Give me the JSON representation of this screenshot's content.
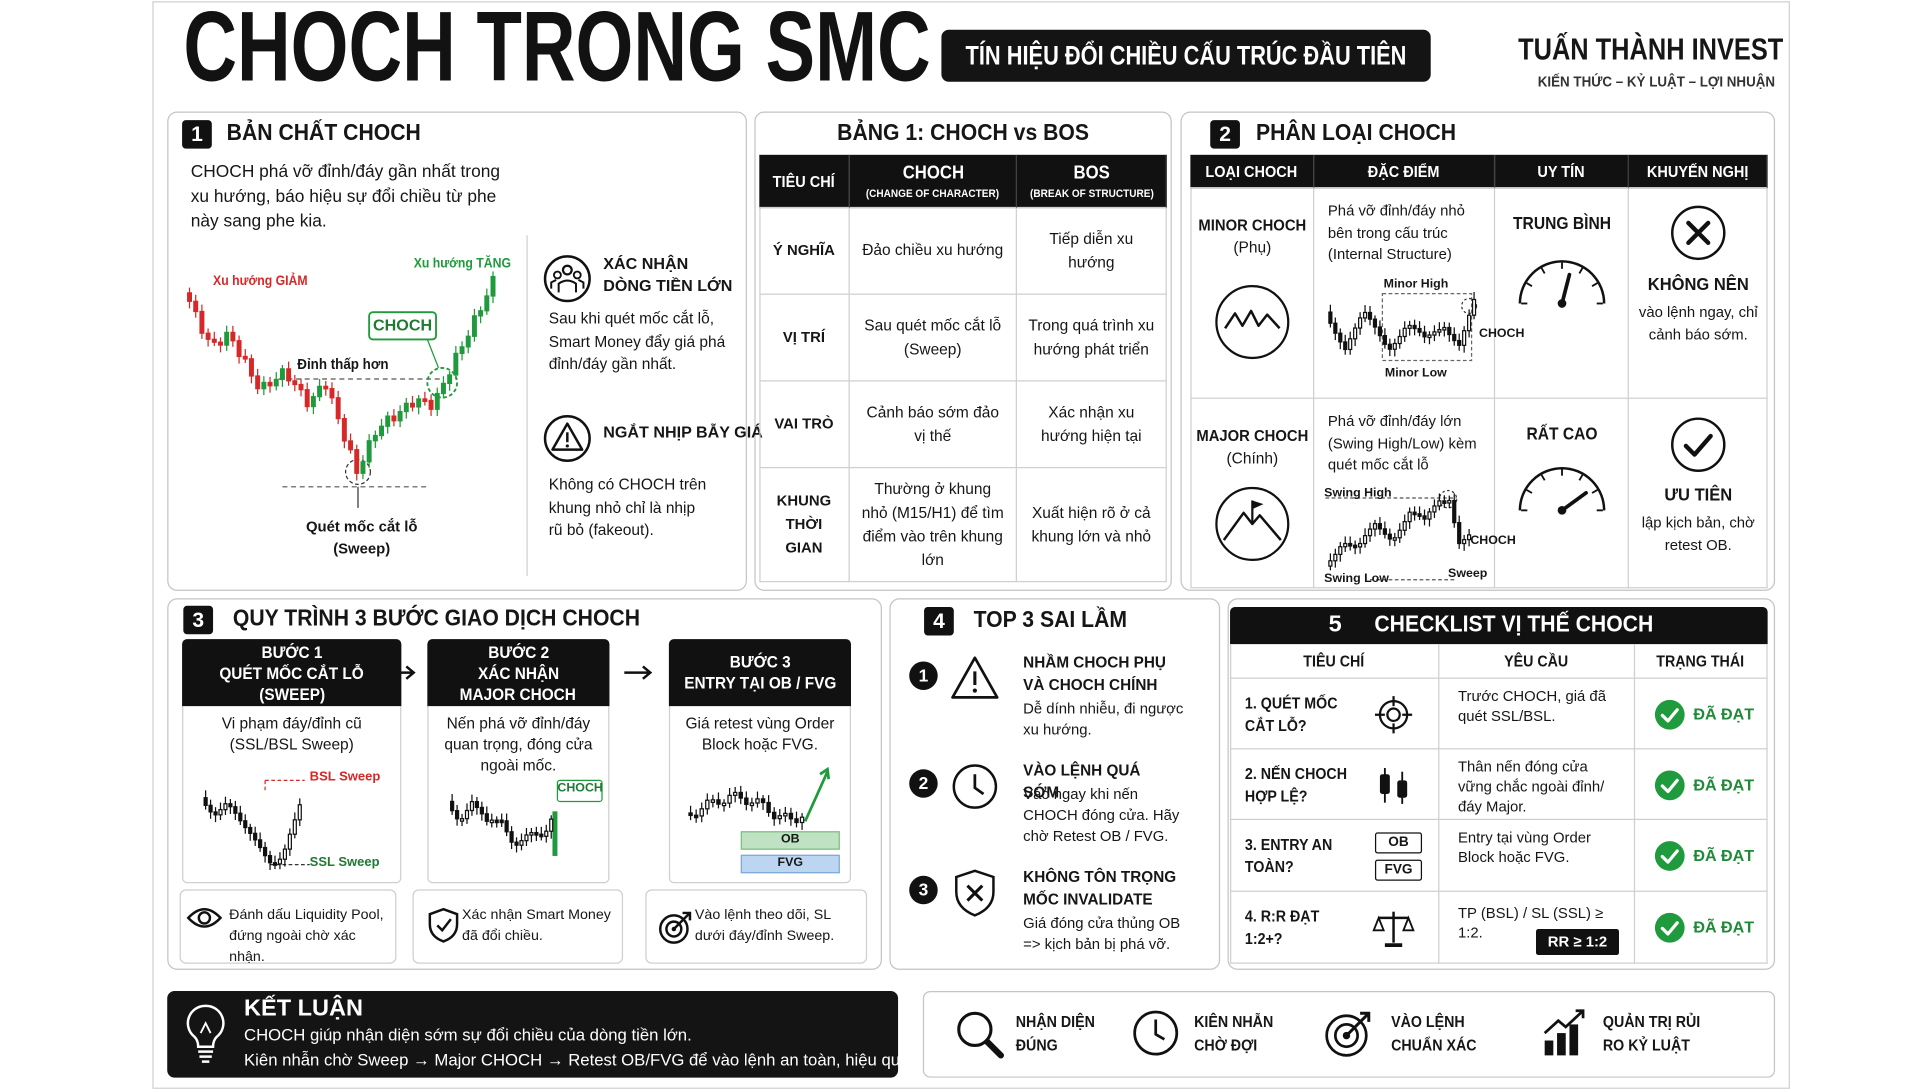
{
  "header": {
    "title": "CHOCH TRONG SMC",
    "subtitle": "TÍN HIỆU ĐỔI CHIỀU CẤU TRÚC ĐẦU TIÊN",
    "brand": "TUẤN THÀNH INVEST",
    "tagline": "KIẾN THỨC – KỶ LUẬT – LỢI NHUẬN"
  },
  "section1": {
    "number": "1",
    "title": "BẢN CHẤT CHOCH",
    "description": "CHOCH phá vỡ đỉnh/đáy gần nhất trong xu hướng, báo hiệu sự đổi chiều từ phe này sang phe kia.",
    "chart_labels": {
      "down": "Xu hướng GIẢM",
      "up": "Xu hướng TĂNG",
      "choch": "CHOCH",
      "lower_high": "Đỉnh thấp hơn",
      "sweep": "Quét mốc cắt lỗ (Sweep)"
    },
    "points": [
      {
        "title": "XÁC NHẬN DÒNG TIỀN LỚN",
        "text": "Sau khi quét mốc cắt lỗ, Smart Money đẩy giá phá đỉnh/đáy gần nhất."
      },
      {
        "title": "NGẮT NHỊP BẪY GIÁ",
        "text": "Không có CHOCH trên khung nhỏ chỉ là nhịp rũ bỏ (fakeout)."
      }
    ]
  },
  "table1": {
    "title": "BẢNG 1: CHOCH vs BOS",
    "headers": [
      {
        "label": "TIÊU CHÍ"
      },
      {
        "label": "CHOCH",
        "sub": "(CHANGE OF CHARACTER)"
      },
      {
        "label": "BOS",
        "sub": "(BREAK OF STRUCTURE)"
      }
    ],
    "rows": [
      [
        "Ý NGHĨA",
        "Đảo chiều xu hướng",
        "Tiếp diễn xu hướng"
      ],
      [
        "VỊ TRÍ",
        "Sau quét mốc cắt lỗ (Sweep)",
        "Trong quá trình xu hướng phát triển"
      ],
      [
        "VAI TRÒ",
        "Cảnh báo sớm đảo vị thế",
        "Xác nhận xu hướng hiện tại"
      ],
      [
        "KHUNG THỜI GIAN",
        "Thường ở khung nhỏ (M15/H1) để tìm điểm vào trên khung lớn",
        "Xuất hiện rõ ở cả khung lớn và nhỏ"
      ]
    ]
  },
  "section2": {
    "number": "2",
    "title": "PHÂN LOẠI CHOCH",
    "headers": [
      "LOẠI CHOCH",
      "ĐẶC ĐIỂM",
      "UY TÍN",
      "KHUYẾN NGHỊ"
    ],
    "rows": [
      {
        "type": "MINOR CHOCH",
        "type_sub": "(Phụ)",
        "feature": "Phá vỡ đỉnh/đáy nhỏ bên trong cấu trúc (Internal Structure)",
        "chart_labels": [
          "Minor High",
          "Minor Low",
          "CHOCH"
        ],
        "reputation": "TRUNG BÌNH",
        "advice_title": "KHÔNG NÊN",
        "advice": "vào lệnh ngay, chỉ cảnh báo sớm."
      },
      {
        "type": "MAJOR CHOCH",
        "type_sub": "(Chính)",
        "feature": "Phá vỡ đỉnh/đáy lớn (Swing High/Low) kèm quét mốc cắt lỗ",
        "chart_labels": [
          "Swing High",
          "Swing Low",
          "Sweep",
          "CHOCH"
        ],
        "reputation": "RẤT CAO",
        "advice_title": "ƯU TIÊN",
        "advice": "lập kịch bản, chờ retest OB."
      }
    ]
  },
  "section3": {
    "number": "3",
    "title": "QUY TRÌNH 3 BƯỚC GIAO DỊCH CHOCH",
    "steps": [
      {
        "title_lines": [
          "BƯỚC 1",
          "QUÉT MỐC CẮT LỖ",
          "(SWEEP)"
        ],
        "text": "Vi phạm đáy/đỉnh cũ (SSL/BSL Sweep)",
        "chart_labels": [
          "BSL Sweep",
          "SSL Sweep"
        ],
        "note": "Đánh dấu Liquidity Pool, đứng ngoài chờ xác nhận."
      },
      {
        "title_lines": [
          "BƯỚC 2",
          "XÁC NHẬN",
          "MAJOR CHOCH"
        ],
        "text": "Nến phá vỡ đỉnh/đáy quan trọng, đóng cửa ngoài mốc.",
        "chart_labels": [
          "CHOCH"
        ],
        "note": "Xác nhận Smart Money đã đổi chiều."
      },
      {
        "title_lines": [
          "BƯỚC 3",
          "ENTRY TẠI OB / FVG"
        ],
        "text": "Giá retest vùng Order Block hoặc FVG.",
        "chart_labels": [
          "OB",
          "FVG"
        ],
        "note": "Vào lệnh theo dõi, SL dưới đáy/đỉnh Sweep."
      }
    ]
  },
  "section4": {
    "number": "4",
    "title": "TOP 3 SAI LẦM",
    "items": [
      {
        "number": "1",
        "title": "NHẦM CHOCH PHỤ VÀ CHOCH CHÍNH",
        "text": "Dễ dính nhiễu, đi ngược xu hướng."
      },
      {
        "number": "2",
        "title": "VÀO LỆNH QUÁ SỚM",
        "text": "Vào ngay khi nến CHOCH đóng cửa. Hãy chờ Retest OB / FVG."
      },
      {
        "number": "3",
        "title": "KHÔNG TÔN TRỌNG MỐC INVALIDATE",
        "text": "Giá đóng cửa thủng OB => kịch bản bị phá vỡ."
      }
    ]
  },
  "section5": {
    "number": "5",
    "title": "CHECKLIST VỊ THẾ CHOCH",
    "headers": [
      "TIÊU CHÍ",
      "YÊU CẦU",
      "TRẠNG THÁI"
    ],
    "rows": [
      {
        "criterion": "1. QUÉT MỐC CẮT LỖ?",
        "requirement": "Trước CHOCH, giá đã quét SSL/BSL.",
        "status": "ĐÃ ĐẠT"
      },
      {
        "criterion": "2. NẾN CHOCH HỢP LỆ?",
        "requirement": "Thân nến đóng cửa vững chắc ngoài đỉnh/đáy Major.",
        "status": "ĐÃ ĐẠT"
      },
      {
        "criterion": "3. ENTRY AN TOÀN?",
        "badges": [
          "OB",
          "FVG"
        ],
        "requirement": "Entry tại vùng Order Block hoặc FVG.",
        "status": "ĐÃ ĐẠT"
      },
      {
        "criterion": "4. R:R ĐẠT 1:2+?",
        "requirement": "TP (BSL) / SL (SSL) ≥ 1:2.",
        "badge": "RR ≥ 1:2",
        "status": "ĐÃ ĐẠT"
      }
    ]
  },
  "conclusion": {
    "title": "KẾT LUẬN",
    "lines": [
      "CHOCH giúp nhận diện sớm sự đổi chiều của dòng tiền lớn.",
      "Kiên nhẫn chờ Sweep → Major CHOCH → Retest OB/FVG để vào lệnh an toàn, hiệu quả."
    ]
  },
  "footer_items": [
    "NHẬN DIỆN ĐÚNG",
    "KIÊN NHẪN CHỜ ĐỢI",
    "VÀO LỆNH CHUẨN XÁC",
    "QUẢN TRỊ RỦI RO KỶ LUẬT"
  ]
}
